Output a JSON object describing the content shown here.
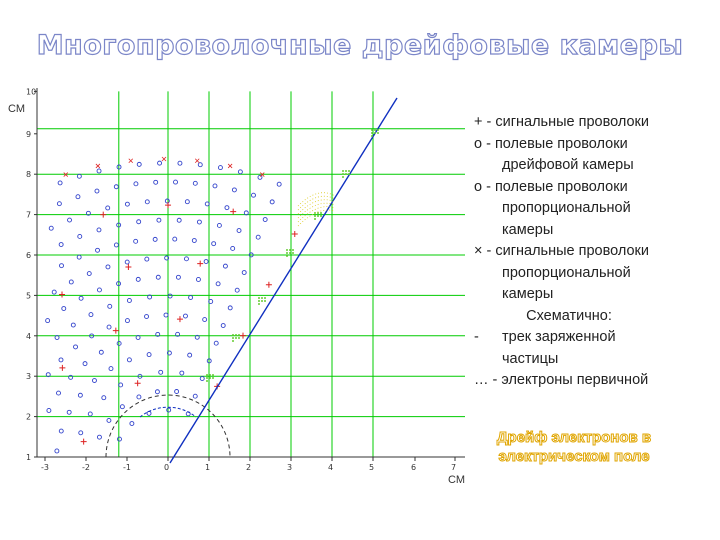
{
  "title": "Многопроволочные дрейфовые камеры",
  "legend": {
    "signal_wires": "+ - сигнальные проволоки",
    "field_drift_1": "о - полевые проволоки",
    "field_drift_2": "дрейфовой камеры",
    "field_prop_1": "о - полевые проволоки",
    "field_prop_2": "пропорциональной",
    "field_prop_3": "камеры",
    "signal_prop_1": "× - сигнальные проволоки",
    "signal_prop_2": "пропорциональной",
    "signal_prop_3": "камеры",
    "schematic": "Схематично:",
    "track_dash": "-",
    "track_1": "трек заряженной",
    "track_2": "частицы",
    "electrons": "… - электроны первичной"
  },
  "drift_caption_1": "Дрейф электронов в",
  "drift_caption_2": "электрическом поле",
  "axes": {
    "unit_y": "СМ",
    "unit_x": "СМ",
    "x_ticks": [
      "-3",
      "-2",
      "-1",
      "0",
      "1",
      "2",
      "3",
      "4",
      "5",
      "6",
      "7"
    ],
    "y_ticks": [
      "1",
      "2",
      "3",
      "4",
      "5",
      "6",
      "7",
      "8",
      "9",
      "10"
    ]
  },
  "colors": {
    "title_outline": "#7b86c8",
    "grid": "#00cc00",
    "field_wire": "#3344cc",
    "signal_wire": "#dd2222",
    "track": "#1030c0",
    "electrons": "#66cc33",
    "drift_caption": "#e0a500"
  }
}
